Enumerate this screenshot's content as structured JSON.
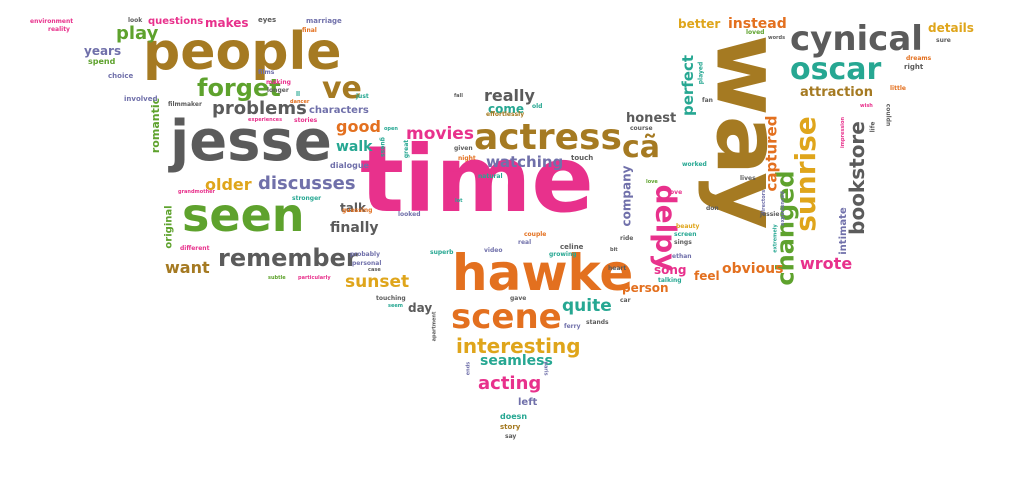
{
  "colors": {
    "pink": "#e8318c",
    "orange": "#e3701f",
    "green": "#5ea22d",
    "brown": "#a57a22",
    "gray": "#5b5b5b",
    "purple": "#7070aa",
    "teal": "#26a792",
    "yellow": "#dfa51b",
    "blue": "#4470b5"
  },
  "words": [
    {
      "text": "time",
      "color": "pink"
    },
    {
      "text": "way",
      "color": "brown"
    },
    {
      "text": "hawke",
      "color": "orange"
    },
    {
      "text": "people",
      "color": "brown"
    },
    {
      "text": "jesse",
      "color": "gray"
    },
    {
      "text": "seen",
      "color": "green"
    },
    {
      "text": "actress",
      "color": "brown"
    },
    {
      "text": "scene",
      "color": "orange"
    },
    {
      "text": "cynical",
      "color": "gray"
    },
    {
      "text": "oscar",
      "color": "teal"
    },
    {
      "text": "sunrise",
      "color": "yellow"
    },
    {
      "text": "delpy",
      "color": "pink"
    },
    {
      "text": "remember",
      "color": "gray"
    },
    {
      "text": "changed",
      "color": "green"
    },
    {
      "text": "cã",
      "color": "brown"
    },
    {
      "text": "ve",
      "color": "brown"
    },
    {
      "text": "forget",
      "color": "green"
    },
    {
      "text": "bookstore",
      "color": "gray"
    },
    {
      "text": "interesting",
      "color": "yellow"
    },
    {
      "text": "play",
      "color": "green"
    },
    {
      "text": "problems",
      "color": "gray"
    },
    {
      "text": "discusses",
      "color": "purple"
    },
    {
      "text": "older",
      "color": "yellow"
    },
    {
      "text": "acting",
      "color": "pink"
    },
    {
      "text": "movies",
      "color": "pink"
    },
    {
      "text": "sunset",
      "color": "yellow"
    },
    {
      "text": "quite",
      "color": "teal"
    },
    {
      "text": "really",
      "color": "gray"
    },
    {
      "text": "seamless",
      "color": "teal"
    },
    {
      "text": "watching",
      "color": "purple"
    },
    {
      "text": "perfect",
      "color": "teal"
    },
    {
      "text": "captured",
      "color": "orange"
    },
    {
      "text": "wrote",
      "color": "pink"
    },
    {
      "text": "obvious",
      "color": "orange"
    },
    {
      "text": "want",
      "color": "brown"
    },
    {
      "text": "good",
      "color": "orange"
    },
    {
      "text": "walk",
      "color": "teal"
    },
    {
      "text": "finally",
      "color": "gray"
    },
    {
      "text": "honest",
      "color": "gray"
    },
    {
      "text": "attraction",
      "color": "brown"
    },
    {
      "text": "instead",
      "color": "orange"
    },
    {
      "text": "better",
      "color": "yellow"
    },
    {
      "text": "details",
      "color": "yellow"
    },
    {
      "text": "romantic",
      "color": "green"
    },
    {
      "text": "years",
      "color": "purple"
    },
    {
      "text": "questions",
      "color": "pink"
    },
    {
      "text": "makes",
      "color": "pink"
    },
    {
      "text": "company",
      "color": "purple"
    },
    {
      "text": "song",
      "color": "pink"
    },
    {
      "text": "person",
      "color": "orange"
    },
    {
      "text": "day",
      "color": "gray"
    },
    {
      "text": "intimate",
      "color": "purple"
    },
    {
      "text": "feel",
      "color": "orange"
    },
    {
      "text": "talk",
      "color": "gray"
    },
    {
      "text": "come",
      "color": "teal"
    },
    {
      "text": "characters",
      "color": "purple"
    },
    {
      "text": "original",
      "color": "green"
    },
    {
      "text": "left",
      "color": "purple"
    },
    {
      "text": "doesn",
      "color": "teal"
    },
    {
      "text": "dialogue",
      "color": "purple"
    },
    {
      "text": "spend",
      "color": "green"
    },
    {
      "text": "eyes",
      "color": "gray"
    },
    {
      "text": "marriage",
      "color": "purple"
    },
    {
      "text": "environment",
      "color": "pink"
    },
    {
      "text": "reality",
      "color": "pink"
    },
    {
      "text": "look",
      "color": "gray"
    },
    {
      "text": "choice",
      "color": "purple"
    },
    {
      "text": "involved",
      "color": "purple"
    },
    {
      "text": "longer",
      "color": "gray"
    },
    {
      "text": "stories",
      "color": "pink"
    },
    {
      "text": "course",
      "color": "gray"
    },
    {
      "text": "touch",
      "color": "gray"
    },
    {
      "text": "story",
      "color": "brown"
    },
    {
      "text": "say",
      "color": "gray"
    },
    {
      "text": "gave",
      "color": "gray"
    },
    {
      "text": "stands",
      "color": "gray"
    },
    {
      "text": "car",
      "color": "gray"
    },
    {
      "text": "heart",
      "color": "gray"
    },
    {
      "text": "talking",
      "color": "teal"
    },
    {
      "text": "ethan",
      "color": "purple"
    },
    {
      "text": "sings",
      "color": "gray"
    },
    {
      "text": "beauty",
      "color": "yellow"
    },
    {
      "text": "screen",
      "color": "teal"
    },
    {
      "text": "celine",
      "color": "gray"
    },
    {
      "text": "couple",
      "color": "orange"
    },
    {
      "text": "growing",
      "color": "teal"
    },
    {
      "text": "real",
      "color": "purple"
    },
    {
      "text": "video",
      "color": "purple"
    },
    {
      "text": "superb",
      "color": "teal"
    },
    {
      "text": "best",
      "color": "pink"
    },
    {
      "text": "natural",
      "color": "teal"
    },
    {
      "text": "given",
      "color": "gray"
    },
    {
      "text": "night",
      "color": "orange"
    },
    {
      "text": "relation",
      "color": "pink"
    },
    {
      "text": "looked",
      "color": "purple"
    },
    {
      "text": "stronger",
      "color": "teal"
    },
    {
      "text": "probably",
      "color": "purple"
    },
    {
      "text": "guessing",
      "color": "orange"
    },
    {
      "text": "personal",
      "color": "purple"
    },
    {
      "text": "case",
      "color": "gray"
    },
    {
      "text": "particularly",
      "color": "pink"
    },
    {
      "text": "subtle",
      "color": "green"
    },
    {
      "text": "touching",
      "color": "gray"
    },
    {
      "text": "seem",
      "color": "teal"
    },
    {
      "text": "different",
      "color": "pink"
    },
    {
      "text": "grandmother",
      "color": "pink"
    },
    {
      "text": "filmmaker",
      "color": "gray"
    },
    {
      "text": "making",
      "color": "pink"
    },
    {
      "text": "films",
      "color": "purple"
    },
    {
      "text": "experiences",
      "color": "pink"
    },
    {
      "text": "effortlessly",
      "color": "brown"
    },
    {
      "text": "old",
      "color": "teal"
    },
    {
      "text": "fan",
      "color": "gray"
    },
    {
      "text": "played",
      "color": "teal"
    },
    {
      "text": "worked",
      "color": "teal"
    },
    {
      "text": "lives",
      "color": "gray"
    },
    {
      "text": "love",
      "color": "pink"
    },
    {
      "text": "directors",
      "color": "purple"
    },
    {
      "text": "extremely",
      "color": "teal"
    },
    {
      "text": "experienced",
      "color": "purple"
    },
    {
      "text": "jessie",
      "color": "gray"
    },
    {
      "text": "don",
      "color": "gray"
    },
    {
      "text": "loved",
      "color": "green"
    },
    {
      "text": "words",
      "color": "gray"
    },
    {
      "text": "right",
      "color": "gray"
    },
    {
      "text": "dreams",
      "color": "orange"
    },
    {
      "text": "sure",
      "color": "gray"
    },
    {
      "text": "little",
      "color": "orange"
    },
    {
      "text": "life",
      "color": "gray"
    },
    {
      "text": "couldn",
      "color": "gray"
    },
    {
      "text": "wish",
      "color": "pink"
    },
    {
      "text": "impression",
      "color": "pink"
    },
    {
      "text": "open",
      "color": "teal"
    },
    {
      "text": "great",
      "color": "teal"
    },
    {
      "text": "guess",
      "color": "teal"
    },
    {
      "text": "final",
      "color": "orange"
    },
    {
      "text": "apartment",
      "color": "gray"
    },
    {
      "text": "ferry",
      "color": "purple"
    },
    {
      "text": "ends",
      "color": "purple"
    },
    {
      "text": "paris",
      "color": "purple"
    },
    {
      "text": "just",
      "color": "teal"
    },
    {
      "text": "ll",
      "color": "teal"
    },
    {
      "text": "lot",
      "color": "teal"
    },
    {
      "text": "fall",
      "color": "gray"
    },
    {
      "text": "bit",
      "color": "gray"
    },
    {
      "text": "ride",
      "color": "gray"
    },
    {
      "text": "dancer",
      "color": "orange"
    },
    {
      "text": "love",
      "color": "green"
    }
  ]
}
